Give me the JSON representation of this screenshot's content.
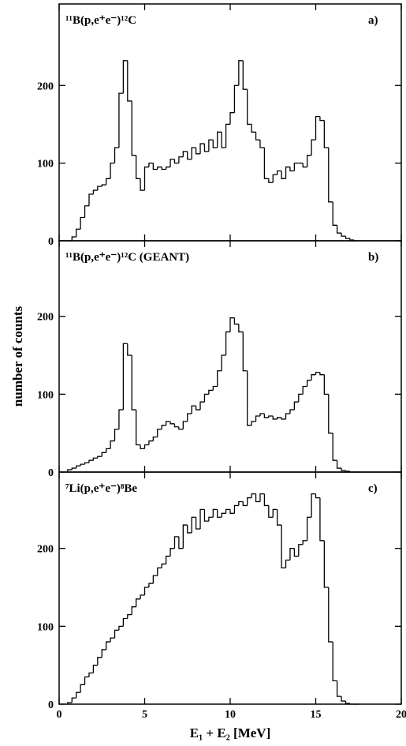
{
  "chart_data": [
    {
      "type": "histogram",
      "title": "¹¹B(p,e⁺e⁻)¹²C",
      "label": "a)",
      "xlim": [
        0,
        20
      ],
      "xticks": [
        0,
        5,
        10,
        15,
        20
      ],
      "ylim": [
        0,
        305
      ],
      "yticks": [
        0,
        100,
        200
      ],
      "bins": [
        0.5,
        0.75,
        1,
        1.25,
        1.5,
        1.75,
        2,
        2.25,
        2.5,
        2.75,
        3,
        3.25,
        3.5,
        3.75,
        4,
        4.25,
        4.5,
        4.75,
        5,
        5.25,
        5.5,
        5.75,
        6,
        6.25,
        6.5,
        6.75,
        7,
        7.25,
        7.5,
        7.75,
        8,
        8.25,
        8.5,
        8.75,
        9,
        9.25,
        9.5,
        9.75,
        10,
        10.25,
        10.5,
        10.75,
        11,
        11.25,
        11.5,
        11.75,
        12,
        12.25,
        12.5,
        12.75,
        13,
        13.25,
        13.5,
        13.75,
        14,
        14.25,
        14.5,
        14.75,
        15,
        15.25,
        15.5,
        15.75,
        16,
        16.25,
        16.5,
        16.75,
        17,
        17.25,
        17.5
      ],
      "values": [
        0,
        5,
        15,
        30,
        45,
        60,
        65,
        70,
        72,
        80,
        100,
        120,
        190,
        232,
        180,
        110,
        80,
        65,
        95,
        100,
        92,
        95,
        92,
        95,
        105,
        100,
        108,
        115,
        105,
        120,
        112,
        125,
        115,
        130,
        120,
        140,
        120,
        150,
        165,
        200,
        232,
        195,
        150,
        140,
        130,
        120,
        80,
        75,
        85,
        90,
        80,
        95,
        90,
        100,
        100,
        95,
        110,
        130,
        160,
        155,
        120,
        50,
        20,
        10,
        6,
        3,
        1,
        0
      ],
      "color": "#000000"
    },
    {
      "type": "histogram",
      "title": "¹¹B(p,e⁺e⁻)¹²C  (GEANT)",
      "label": "b)",
      "ylabel": "number of counts",
      "xlim": [
        0,
        20
      ],
      "xticks": [
        0,
        5,
        10,
        15,
        20
      ],
      "ylim": [
        0,
        297
      ],
      "yticks": [
        0,
        100,
        200
      ],
      "bins": [
        0.5,
        0.75,
        1,
        1.25,
        1.5,
        1.75,
        2,
        2.25,
        2.5,
        2.75,
        3,
        3.25,
        3.5,
        3.75,
        4,
        4.25,
        4.5,
        4.75,
        5,
        5.25,
        5.5,
        5.75,
        6,
        6.25,
        6.5,
        6.75,
        7,
        7.25,
        7.5,
        7.75,
        8,
        8.25,
        8.5,
        8.75,
        9,
        9.25,
        9.5,
        9.75,
        10,
        10.25,
        10.5,
        10.75,
        11,
        11.25,
        11.5,
        11.75,
        12,
        12.25,
        12.5,
        12.75,
        13,
        13.25,
        13.5,
        13.75,
        14,
        14.25,
        14.5,
        14.75,
        15,
        15.25,
        15.5,
        15.75,
        16,
        16.25,
        16.5,
        16.75,
        17,
        17.25,
        17.5
      ],
      "values": [
        3,
        5,
        8,
        10,
        12,
        15,
        18,
        20,
        25,
        30,
        40,
        55,
        80,
        165,
        150,
        80,
        35,
        30,
        35,
        40,
        45,
        55,
        60,
        65,
        62,
        58,
        55,
        65,
        75,
        85,
        80,
        90,
        100,
        105,
        110,
        130,
        150,
        180,
        198,
        190,
        180,
        130,
        60,
        65,
        72,
        75,
        70,
        72,
        68,
        70,
        68,
        75,
        80,
        90,
        100,
        110,
        118,
        125,
        128,
        125,
        100,
        50,
        15,
        5,
        2,
        1,
        0,
        0
      ],
      "color": "#000000"
    },
    {
      "type": "histogram",
      "title": "⁷Li(p,e⁺e⁻)⁸Be",
      "label": "c)",
      "xlabel": "E₁ + E₂ [MeV]",
      "xlim": [
        0,
        20
      ],
      "xticks": [
        0,
        5,
        10,
        15,
        20
      ],
      "ylim": [
        0,
        298
      ],
      "yticks": [
        0,
        100,
        200
      ],
      "bins": [
        0.5,
        0.75,
        1,
        1.25,
        1.5,
        1.75,
        2,
        2.25,
        2.5,
        2.75,
        3,
        3.25,
        3.5,
        3.75,
        4,
        4.25,
        4.5,
        4.75,
        5,
        5.25,
        5.5,
        5.75,
        6,
        6.25,
        6.5,
        6.75,
        7,
        7.25,
        7.5,
        7.75,
        8,
        8.25,
        8.5,
        8.75,
        9,
        9.25,
        9.5,
        9.75,
        10,
        10.25,
        10.5,
        10.75,
        11,
        11.25,
        11.5,
        11.75,
        12,
        12.25,
        12.5,
        12.75,
        13,
        13.25,
        13.5,
        13.75,
        14,
        14.25,
        14.5,
        14.75,
        15,
        15.25,
        15.5,
        15.75,
        16,
        16.25,
        16.5,
        16.75,
        17,
        17.25,
        17.5
      ],
      "values": [
        2,
        8,
        15,
        25,
        35,
        40,
        50,
        60,
        70,
        80,
        85,
        95,
        100,
        110,
        115,
        125,
        135,
        140,
        150,
        155,
        165,
        175,
        180,
        190,
        200,
        215,
        200,
        230,
        220,
        240,
        225,
        250,
        235,
        240,
        250,
        240,
        245,
        250,
        245,
        255,
        260,
        255,
        265,
        270,
        260,
        270,
        255,
        240,
        250,
        230,
        175,
        185,
        200,
        190,
        205,
        210,
        240,
        270,
        265,
        210,
        150,
        80,
        30,
        10,
        4,
        1,
        0,
        0
      ],
      "color": "#000000"
    }
  ]
}
